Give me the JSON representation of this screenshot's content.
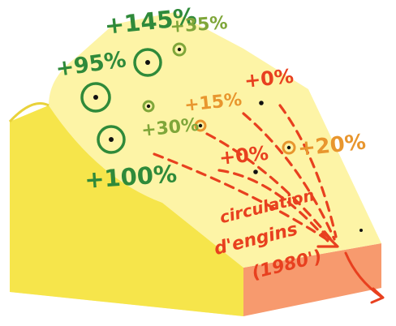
{
  "colors": {
    "dark_green": "#2f8a3a",
    "light_green": "#7fa63a",
    "orange": "#e8962e",
    "red": "#e8401f",
    "yellow_top": "#fdf4a6",
    "yellow_side": "#f7e64d",
    "orange_face": "#f79a6e"
  },
  "markers": [
    {
      "label": "+95%",
      "tone": "dark_green"
    },
    {
      "label": "+145%",
      "tone": "dark_green"
    },
    {
      "label": "+35%",
      "tone": "light_green"
    },
    {
      "label": "+30%",
      "tone": "light_green"
    },
    {
      "label": "+100%",
      "tone": "dark_green"
    },
    {
      "label": "+15%",
      "tone": "orange"
    },
    {
      "label": "+0%",
      "tone": "red"
    },
    {
      "label": "+0%",
      "tone": "red"
    },
    {
      "label": "+20%",
      "tone": "orange"
    }
  ],
  "annotation": {
    "line1": "circulation",
    "line2": "d'engins",
    "line3": "(1980')"
  }
}
